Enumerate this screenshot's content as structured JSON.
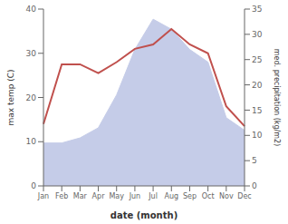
{
  "chart_data": {
    "type": "line",
    "categories": [
      "Jan",
      "Feb",
      "Mar",
      "Apr",
      "May",
      "Jun",
      "Jul",
      "Aug",
      "Sep",
      "Oct",
      "Nov",
      "Dec"
    ],
    "series": [
      {
        "type": "area",
        "axis": "y2",
        "color": "#c5cce8",
        "values": [
          8.5,
          8.5,
          9.5,
          11.5,
          18.0,
          27.0,
          33.0,
          31.0,
          27.0,
          24.5,
          13.5,
          11.0
        ]
      },
      {
        "type": "line",
        "color": "#c0504d",
        "values": [
          14.0,
          27.5,
          27.5,
          25.5,
          28.0,
          31.0,
          32.0,
          35.5,
          32.0,
          30.0,
          18.0,
          13.5
        ]
      }
    ],
    "xlabel": "date (month)",
    "ylabel": "max temp (C)",
    "y2label": "med. precipitation (kg/m2)",
    "ylim": [
      0,
      40
    ],
    "yticks": [
      0,
      10,
      20,
      30,
      40
    ],
    "y2lim": [
      0,
      35
    ],
    "y2ticks": [
      0,
      5,
      10,
      15,
      20,
      25,
      30,
      35
    ],
    "grid": false
  }
}
